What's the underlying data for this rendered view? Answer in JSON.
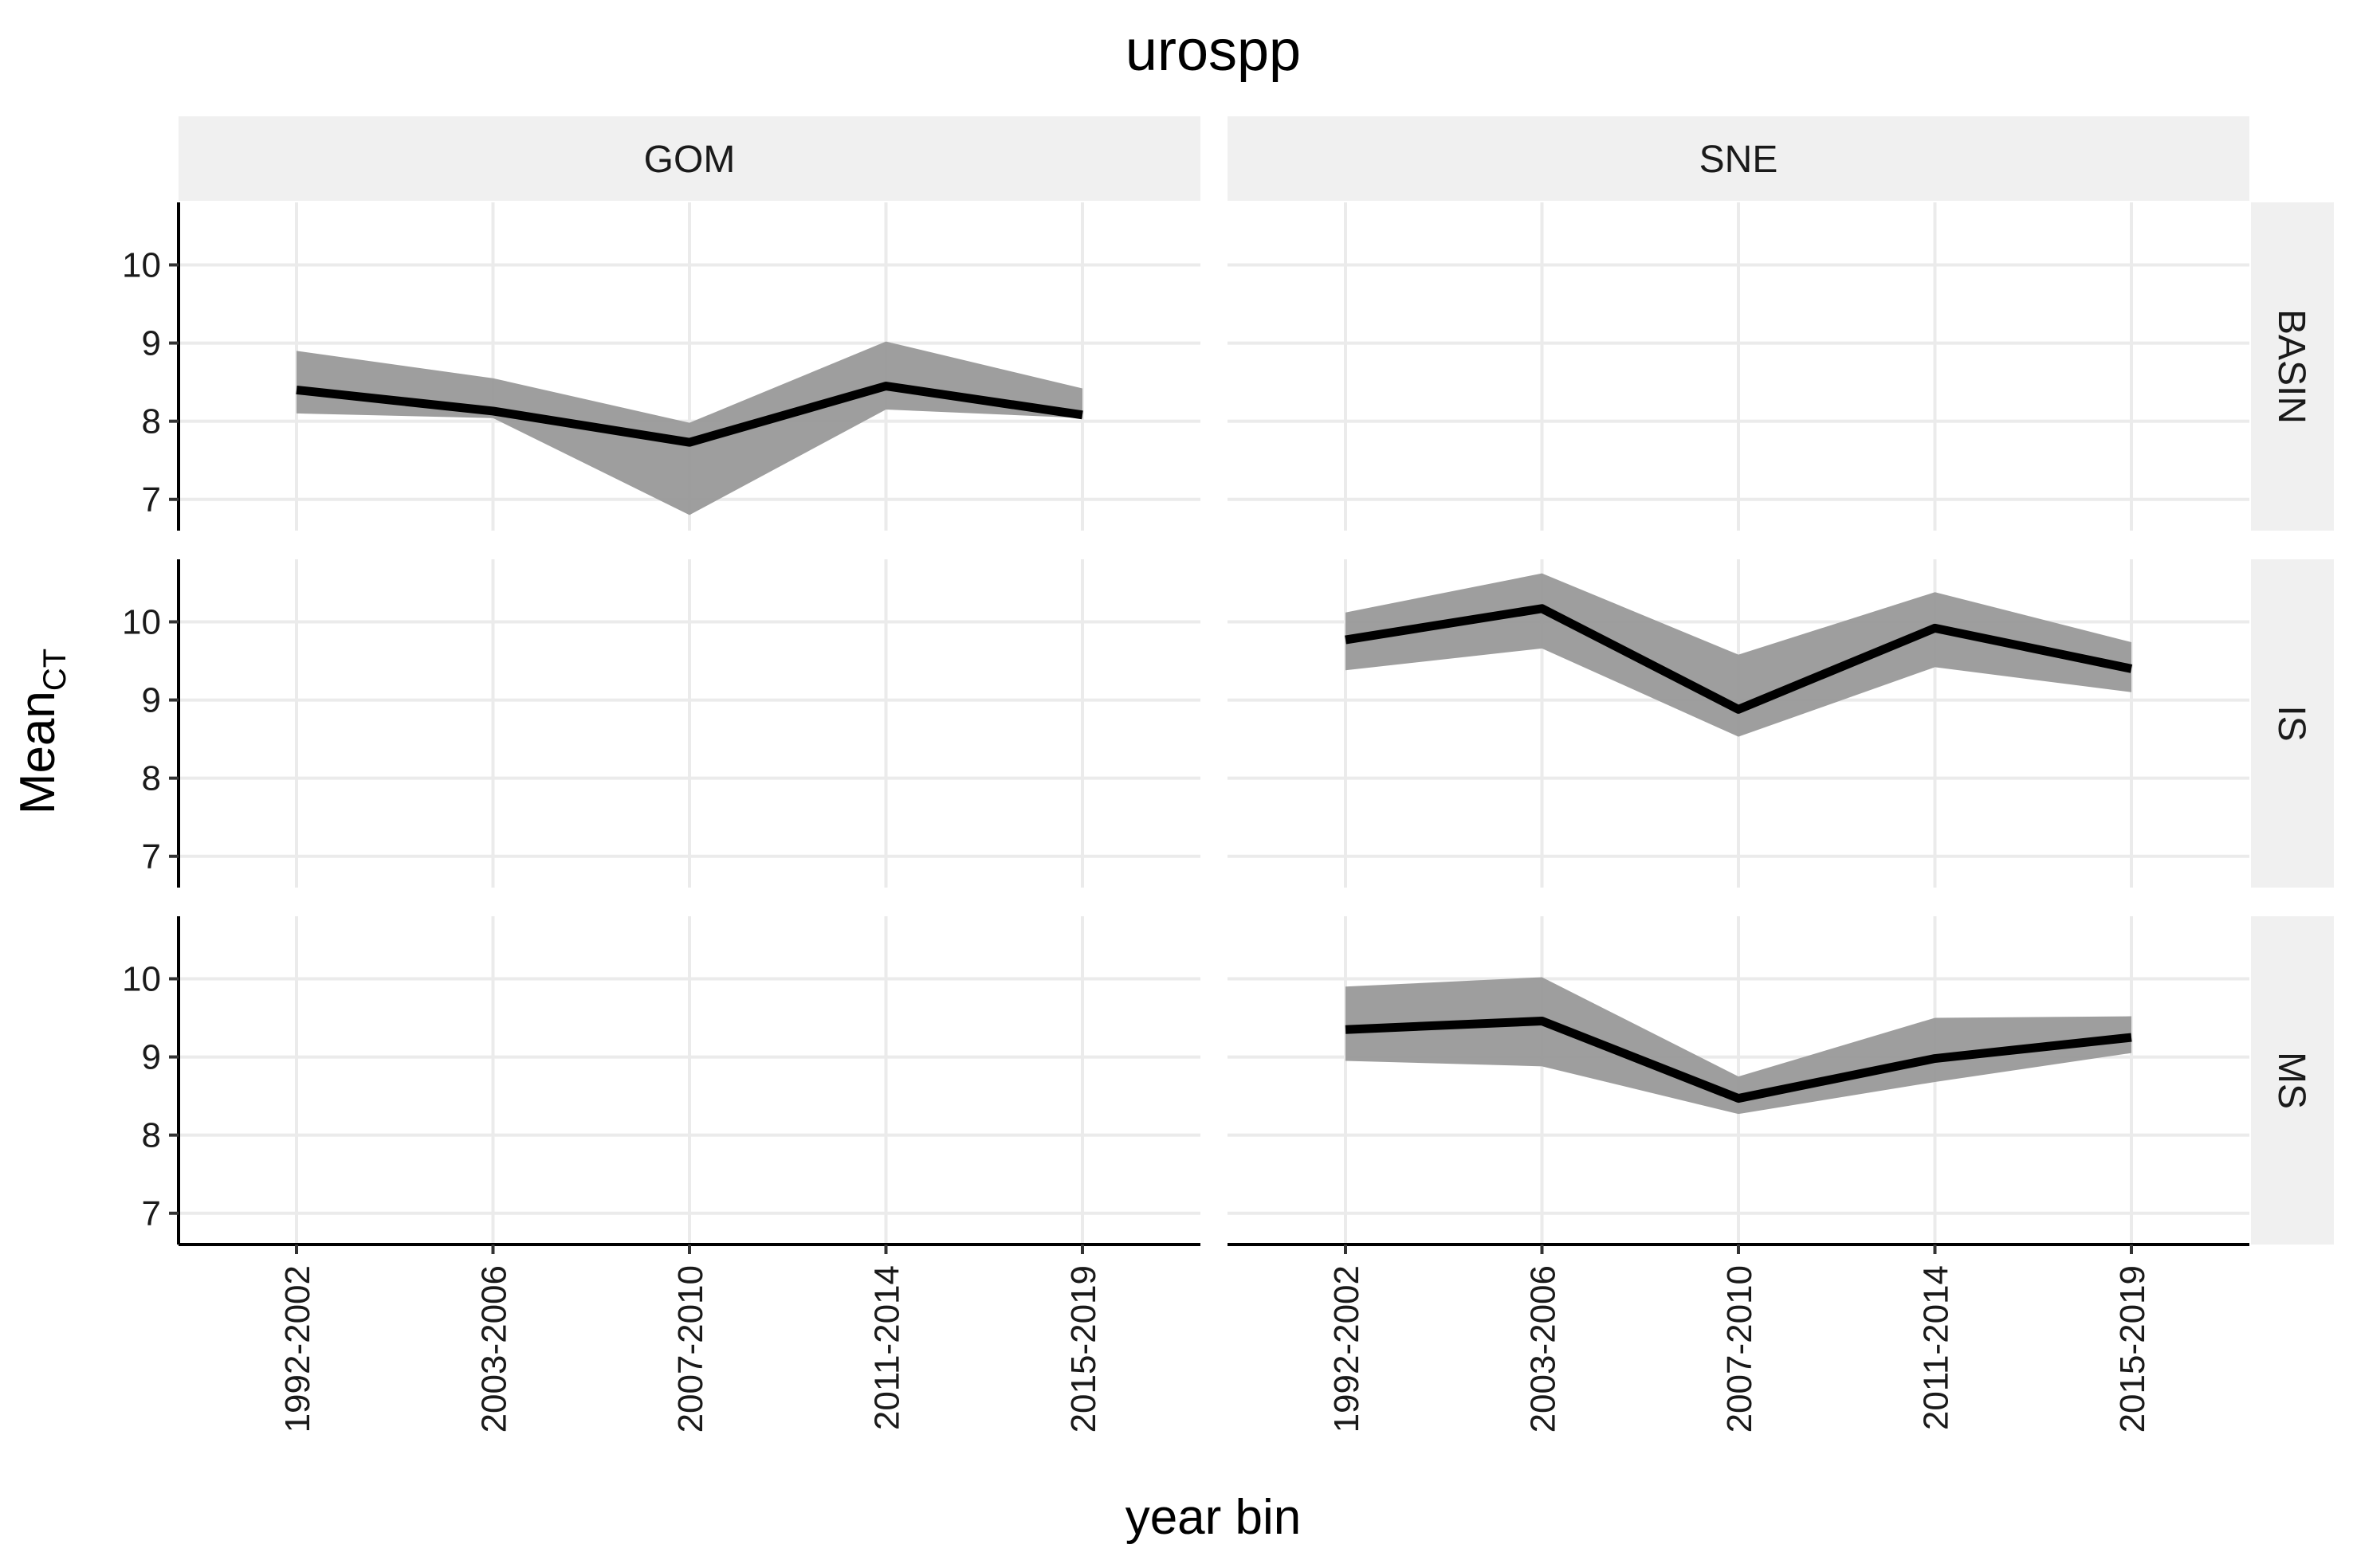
{
  "chart_data": {
    "type": "line",
    "title": "urospp",
    "xlabel": "year bin",
    "ylabel": "Mean",
    "ylabel_subscript": "CT",
    "categories": [
      "1992-2002",
      "2003-2006",
      "2007-2010",
      "2011-2014",
      "2015-2019"
    ],
    "y_ticks": [
      "7",
      "8",
      "9",
      "10"
    ],
    "ylim": [
      6.6,
      10.8
    ],
    "grid": true,
    "column_facets": [
      "GOM",
      "SNE"
    ],
    "row_facets": [
      "BASIN",
      "IS",
      "MS"
    ],
    "band_color": "#999999",
    "line_color": "#000000",
    "panels": [
      {
        "column": "GOM",
        "row": "BASIN",
        "series": [
          {
            "values": [
              8.4,
              8.13,
              7.73,
              8.45,
              8.08
            ],
            "lower": [
              8.1,
              8.04,
              6.8,
              8.15,
              8.04
            ],
            "upper": [
              8.9,
              8.55,
              7.98,
              9.02,
              8.42
            ]
          }
        ]
      },
      {
        "column": "SNE",
        "row": "BASIN",
        "series": []
      },
      {
        "column": "GOM",
        "row": "IS",
        "series": []
      },
      {
        "column": "SNE",
        "row": "IS",
        "series": [
          {
            "values": [
              9.77,
              10.17,
              8.88,
              9.92,
              9.4
            ],
            "lower": [
              9.38,
              9.66,
              8.53,
              9.42,
              9.1
            ],
            "upper": [
              10.12,
              10.62,
              9.58,
              10.38,
              9.74
            ]
          }
        ]
      },
      {
        "column": "GOM",
        "row": "MS",
        "series": []
      },
      {
        "column": "SNE",
        "row": "MS",
        "series": [
          {
            "values": [
              9.35,
              9.46,
              8.47,
              8.98,
              9.25
            ],
            "lower": [
              8.95,
              8.88,
              8.27,
              8.68,
              9.05
            ],
            "upper": [
              9.9,
              10.02,
              8.75,
              9.5,
              9.52
            ]
          }
        ]
      }
    ]
  }
}
